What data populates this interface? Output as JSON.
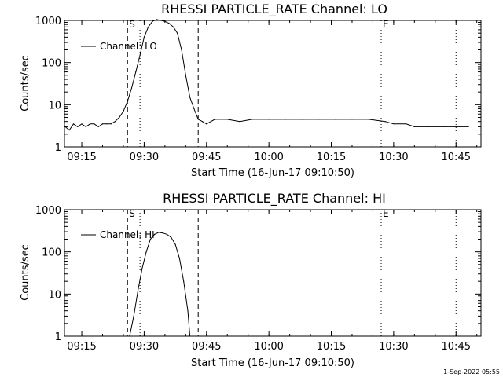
{
  "chart_data": [
    {
      "type": "line",
      "title": "RHESSI PARTICLE_RATE Channel: LO",
      "xlabel": "Start Time (16-Jun-17 09:10:50)",
      "ylabel": "Counts/sec",
      "yscale": "log",
      "xlim": [
        "09:10:50",
        "10:51:00"
      ],
      "ylim": [
        1,
        1000
      ],
      "x_ticks": [
        "09:15",
        "09:30",
        "09:45",
        "10:00",
        "10:15",
        "10:30",
        "10:45"
      ],
      "y_ticks": [
        "1",
        "10",
        "100",
        "1000"
      ],
      "legend": "top-left",
      "markers": [
        {
          "label": "S",
          "x": "09:26:00",
          "style": "dashed"
        },
        {
          "label": "",
          "x": "09:29:00",
          "style": "dotted"
        },
        {
          "label": "",
          "x": "09:43:00",
          "style": "dashed"
        },
        {
          "label": "E",
          "x": "10:27:00",
          "style": "dotted"
        },
        {
          "label": "",
          "x": "10:45:00",
          "style": "dotted"
        }
      ],
      "series": [
        {
          "name": "Channel: LO",
          "x": [
            "09:11:00",
            "09:12:00",
            "09:13:00",
            "09:14:00",
            "09:15:00",
            "09:16:00",
            "09:17:00",
            "09:18:00",
            "09:19:00",
            "09:20:00",
            "09:21:00",
            "09:22:00",
            "09:23:00",
            "09:24:00",
            "09:25:00",
            "09:26:00",
            "09:27:00",
            "09:28:00",
            "09:29:00",
            "09:30:00",
            "09:31:00",
            "09:32:00",
            "09:33:00",
            "09:34:00",
            "09:35:00",
            "09:36:00",
            "09:37:00",
            "09:38:00",
            "09:39:00",
            "09:40:00",
            "09:41:00",
            "09:42:00",
            "09:43:00",
            "09:44:00",
            "09:45:00",
            "09:47:00",
            "09:50:00",
            "09:53:00",
            "09:56:00",
            "10:00:00",
            "10:04:00",
            "10:08:00",
            "10:12:00",
            "10:16:00",
            "10:20:00",
            "10:24:00",
            "10:28:00",
            "10:30:00",
            "10:33:00",
            "10:35:00",
            "10:38:00",
            "10:42:00",
            "10:45:00",
            "10:48:00"
          ],
          "y": [
            3.0,
            2.5,
            3.5,
            3.0,
            3.5,
            3.0,
            3.5,
            3.5,
            3.0,
            3.5,
            3.5,
            3.5,
            4.0,
            5.0,
            7.0,
            12,
            25,
            60,
            150,
            400,
            700,
            950,
            1050,
            1000,
            950,
            850,
            700,
            500,
            200,
            50,
            15,
            8,
            4.5,
            4.0,
            3.5,
            4.5,
            4.5,
            4.0,
            4.5,
            4.5,
            4.5,
            4.5,
            4.5,
            4.5,
            4.5,
            4.5,
            4.0,
            3.5,
            3.5,
            3.0,
            3.0,
            3.0,
            3.0,
            3.0
          ]
        }
      ]
    },
    {
      "type": "line",
      "title": "RHESSI PARTICLE_RATE Channel: HI",
      "xlabel": "Start Time (16-Jun-17 09:10:50)",
      "ylabel": "Counts/sec",
      "yscale": "log",
      "xlim": [
        "09:10:50",
        "10:51:00"
      ],
      "ylim": [
        1,
        1000
      ],
      "x_ticks": [
        "09:15",
        "09:30",
        "09:45",
        "10:00",
        "10:15",
        "10:30",
        "10:45"
      ],
      "y_ticks": [
        "1",
        "10",
        "100",
        "1000"
      ],
      "legend": "top-left",
      "markers": [
        {
          "label": "S",
          "x": "09:26:00",
          "style": "dashed"
        },
        {
          "label": "",
          "x": "09:29:00",
          "style": "dotted"
        },
        {
          "label": "",
          "x": "09:43:00",
          "style": "dashed"
        },
        {
          "label": "E",
          "x": "10:27:00",
          "style": "dotted"
        },
        {
          "label": "",
          "x": "10:45:00",
          "style": "dotted"
        }
      ],
      "series": [
        {
          "name": "Channel: HI",
          "x": [
            "09:26:30",
            "09:27:30",
            "09:28:30",
            "09:29:30",
            "09:30:30",
            "09:31:30",
            "09:32:30",
            "09:33:30",
            "09:34:30",
            "09:35:30",
            "09:36:30",
            "09:37:30",
            "09:38:30",
            "09:39:30",
            "09:40:30",
            "09:41:00"
          ],
          "y": [
            1,
            3,
            12,
            40,
            100,
            200,
            260,
            290,
            280,
            260,
            220,
            150,
            70,
            20,
            4,
            1
          ]
        }
      ]
    }
  ],
  "footer": {
    "stamp": "1-Sep-2022 05:55"
  }
}
